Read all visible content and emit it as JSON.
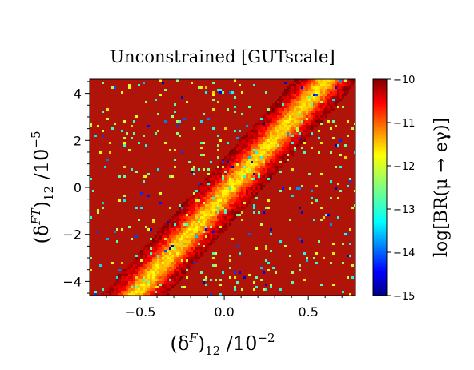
{
  "chart_data": {
    "type": "heatmap",
    "title": "Unconstrained [GUTscale]",
    "xlabel": "(δᶠ)₁₂ /10⁻²",
    "ylabel": "(δᶠᵀ)₁₂ /10⁻⁵",
    "xlim": [
      -0.8,
      0.78
    ],
    "ylim": [
      -4.6,
      4.6
    ],
    "xticks": [
      -0.5,
      0.0,
      0.5
    ],
    "xtick_labels": [
      "−0.5",
      "0.0",
      "0.5"
    ],
    "yticks": [
      -4,
      -2,
      0,
      2,
      4
    ],
    "ytick_labels": [
      "−4",
      "−2",
      "0",
      "2",
      "4"
    ],
    "band": {
      "description": "diagonal band of suppressed BR",
      "x_start": -0.55,
      "y_start": -4.6,
      "x_end": 0.6,
      "y_end": 4.6,
      "center_value": -11.7,
      "background_value": -10.1
    },
    "colorbar": {
      "label": "log[BR(μ→eγ)]",
      "range": [
        -15,
        -10
      ],
      "ticks": [
        -10,
        -11,
        -12,
        -13,
        -14,
        -15
      ],
      "tick_labels": [
        "−10",
        "−11",
        "−12",
        "−13",
        "−14",
        "−15"
      ],
      "colormap": "jet"
    },
    "grid": false
  }
}
